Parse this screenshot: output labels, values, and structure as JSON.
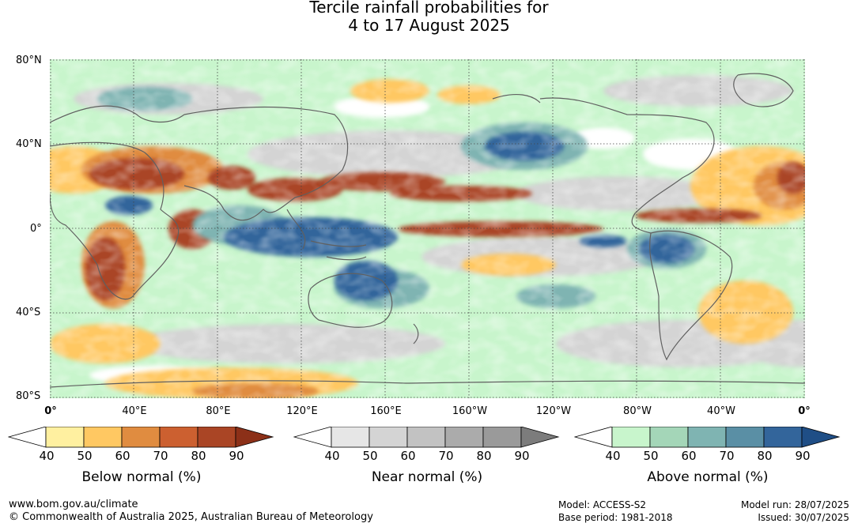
{
  "title": {
    "line1": "Tercile rainfall probabilities for",
    "line2": "4 to 17 August 2025"
  },
  "lat_labels": [
    "80°N",
    "40°N",
    "0°",
    "40°S",
    "80°S"
  ],
  "lon_labels": [
    "0°",
    "40°E",
    "80°E",
    "120°E",
    "160°E",
    "160°W",
    "120°W",
    "80°W",
    "40°W",
    "0°"
  ],
  "legends": [
    {
      "name": "Below normal (%)",
      "ticks": [
        "40",
        "50",
        "60",
        "70",
        "80",
        "90"
      ],
      "colors": [
        "#ffffff",
        "#fff0a0",
        "#ffc862",
        "#e08c40",
        "#cc6030",
        "#aa4525",
        "#8c3018"
      ]
    },
    {
      "name": "Near normal (%)",
      "ticks": [
        "40",
        "50",
        "60",
        "70",
        "80",
        "90"
      ],
      "colors": [
        "#ffffff",
        "#e6e6e6",
        "#d4d4d4",
        "#c2c2c2",
        "#ababab",
        "#9a9a9a",
        "#7c7c7c"
      ]
    },
    {
      "name": "Above normal (%)",
      "ticks": [
        "40",
        "50",
        "60",
        "70",
        "80",
        "90"
      ],
      "colors": [
        "#ffffff",
        "#c8f5cc",
        "#a4d6b8",
        "#7fb4b2",
        "#5a8fa5",
        "#33659b",
        "#1f4e86"
      ]
    }
  ],
  "footer": {
    "website": "www.bom.gov.au/climate",
    "copyright": "© Commonwealth of Australia 2025, Australian Bureau of Meteorology",
    "model": "Model: ACCESS-S2",
    "base_period": "Base period: 1981-2018",
    "model_run": "Model run: 28/07/2025",
    "issued": "Issued: 30/07/2025"
  }
}
